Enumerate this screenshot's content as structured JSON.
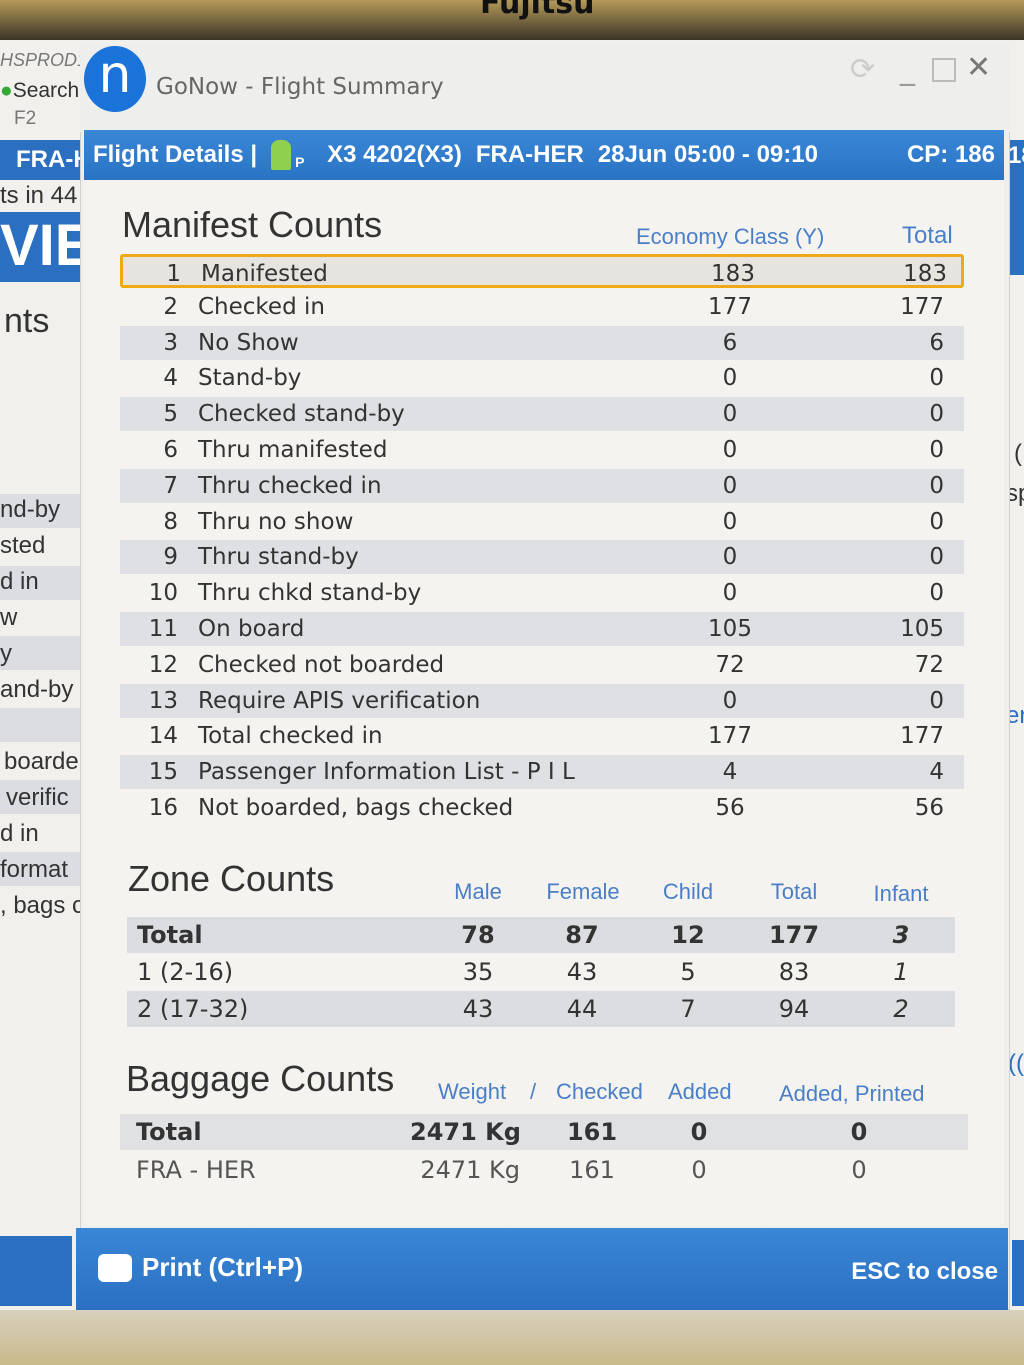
{
  "bezel_brand": "Fujitsu",
  "background_app": {
    "left_texts": [
      "HSPROD1",
      "Search",
      "F2",
      "FRA-H",
      "ts in 44",
      "VIE",
      "nts",
      "nd-by",
      "sted",
      "d in",
      "w",
      "y",
      "and-by",
      "boarde",
      "verific",
      "d in",
      "format",
      ", bags c"
    ],
    "right_texts": [
      "18",
      "(",
      "sp",
      "er",
      "(("
    ]
  },
  "window": {
    "title": "GoNow - Flight Summary",
    "logo_letter": "n"
  },
  "header": {
    "label": "Flight Details |",
    "flight": "X3 4202(X3)",
    "route": "FRA-HER",
    "date_time": "28Jun 05:00 - 09:10",
    "cp": "CP: 186",
    "icon": "passenger-p-icon",
    "accent": "#2f7fd0"
  },
  "manifest": {
    "title": "Manifest Counts",
    "columns": [
      "Economy Class (Y)",
      "Total"
    ],
    "rows": [
      {
        "n": "1",
        "label": "Manifested",
        "eco": "183",
        "total": "183"
      },
      {
        "n": "2",
        "label": "Checked in",
        "eco": "177",
        "total": "177"
      },
      {
        "n": "3",
        "label": "No Show",
        "eco": "6",
        "total": "6"
      },
      {
        "n": "4",
        "label": "Stand-by",
        "eco": "0",
        "total": "0"
      },
      {
        "n": "5",
        "label": "Checked stand-by",
        "eco": "0",
        "total": "0"
      },
      {
        "n": "6",
        "label": "Thru manifested",
        "eco": "0",
        "total": "0"
      },
      {
        "n": "7",
        "label": "Thru checked in",
        "eco": "0",
        "total": "0"
      },
      {
        "n": "8",
        "label": "Thru no show",
        "eco": "0",
        "total": "0"
      },
      {
        "n": "9",
        "label": "Thru stand-by",
        "eco": "0",
        "total": "0"
      },
      {
        "n": "10",
        "label": "Thru chkd stand-by",
        "eco": "0",
        "total": "0"
      },
      {
        "n": "11",
        "label": "On board",
        "eco": "105",
        "total": "105"
      },
      {
        "n": "12",
        "label": "Checked not boarded",
        "eco": "72",
        "total": "72"
      },
      {
        "n": "13",
        "label": "Require APIS verification",
        "eco": "0",
        "total": "0"
      },
      {
        "n": "14",
        "label": "Total checked in",
        "eco": "177",
        "total": "177"
      },
      {
        "n": "15",
        "label": "Passenger Information List - P I L",
        "eco": "4",
        "total": "4"
      },
      {
        "n": "16",
        "label": "Not boarded, bags checked",
        "eco": "56",
        "total": "56"
      }
    ],
    "highlight_color": "#f0a818"
  },
  "zones": {
    "title": "Zone Counts",
    "columns": [
      "Male",
      "Female",
      "Child",
      "Total",
      "Infant"
    ],
    "rows": [
      {
        "label": "Total",
        "v": [
          "78",
          "87",
          "12",
          "177",
          "3"
        ]
      },
      {
        "label": "1 (2-16)",
        "v": [
          "35",
          "43",
          "5",
          "83",
          "1"
        ]
      },
      {
        "label": "2 (17-32)",
        "v": [
          "43",
          "44",
          "7",
          "94",
          "2"
        ]
      }
    ]
  },
  "baggage": {
    "title": "Baggage Counts",
    "columns": [
      "Weight",
      "/",
      "Checked",
      "Added",
      "Added, Printed"
    ],
    "rows": [
      {
        "label": "Total",
        "v": [
          "2471 Kg",
          "161",
          "0",
          "0"
        ]
      },
      {
        "label": "FRA - HER",
        "v": [
          "2471 Kg",
          "161",
          "0",
          "0"
        ]
      }
    ]
  },
  "footer": {
    "print": "Print (Ctrl+P)",
    "close": "ESC to close"
  }
}
